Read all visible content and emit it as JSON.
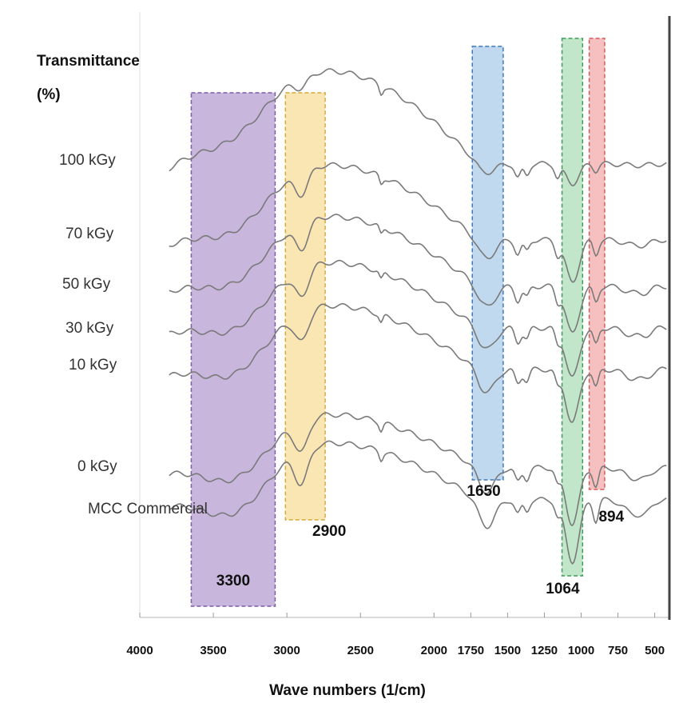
{
  "chart_data": {
    "type": "line",
    "ylabel_line1": "Transmittance",
    "ylabel_line2": "(%)",
    "xlabel": "Wave numbers (1/cm)",
    "xlim": [
      4000,
      400
    ],
    "x_reversed": true,
    "x_ticks": [
      "4000",
      "3500",
      "3000",
      "2500",
      "2000",
      "1750",
      "1500",
      "1250",
      "1000",
      "750",
      "500"
    ],
    "x_tick_values": [
      4000,
      3500,
      3000,
      2500,
      2000,
      1750,
      1500,
      1250,
      1000,
      750,
      500
    ],
    "sample_labels": [
      "100 kGy",
      "70 kGy",
      "50 kGy",
      "30 kGy",
      "10 kGy",
      "0 kGy",
      "MCC Commercial"
    ],
    "bands": [
      {
        "label": "3300",
        "range": [
          3650,
          3080
        ],
        "color": "#b39ad0",
        "edge": "#7d5ca8"
      },
      {
        "label": "2900",
        "range": [
          3010,
          2740
        ],
        "color": "#f6dc95",
        "edge": "#d8a93a"
      },
      {
        "label": "1650",
        "range": [
          1740,
          1530
        ],
        "color": "#a9cbe8",
        "edge": "#3f78bd"
      },
      {
        "label": "1064",
        "range": [
          1130,
          990
        ],
        "color": "#a9dcb4",
        "edge": "#3c9d57"
      },
      {
        "label": "894",
        "range": [
          945,
          840
        ],
        "color": "#f4a8a8",
        "edge": "#d85a5a"
      }
    ],
    "grid": false,
    "legend": "none"
  }
}
